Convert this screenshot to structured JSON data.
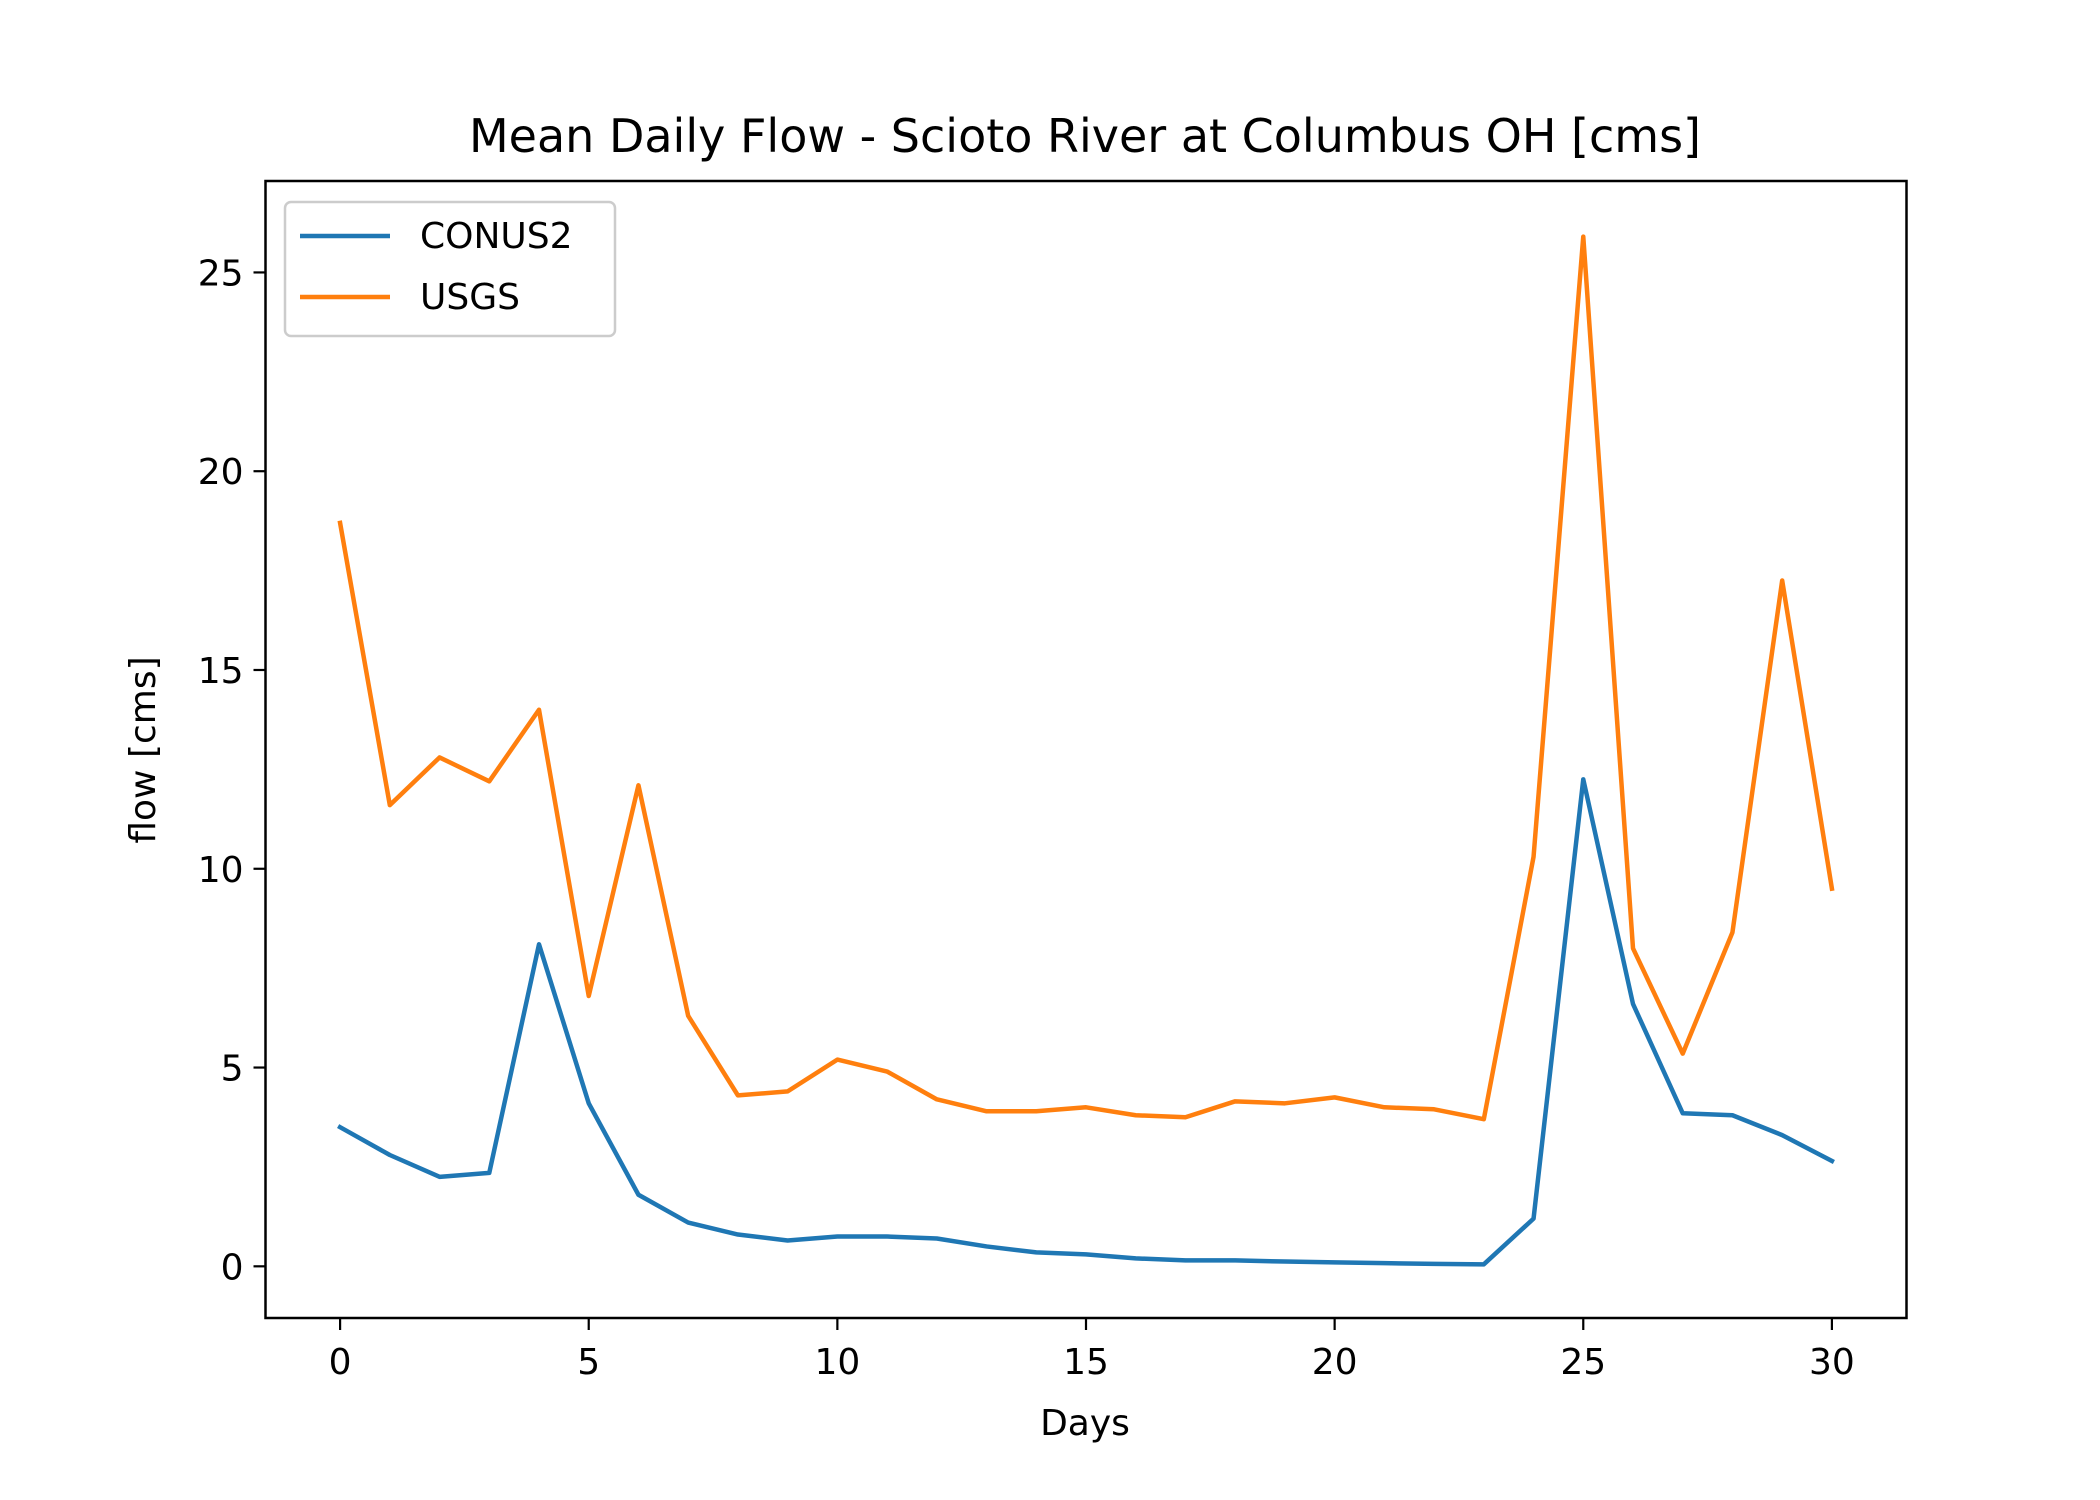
{
  "chart_data": {
    "type": "line",
    "title": "Mean Daily Flow - Scioto River at Columbus OH [cms]",
    "xlabel": "Days",
    "ylabel": "flow [cms]",
    "xlim": [
      -1.5,
      31.5
    ],
    "ylim": [
      -1.3,
      27.3
    ],
    "xticks": [
      0,
      5,
      10,
      15,
      20,
      25,
      30
    ],
    "yticks": [
      0,
      5,
      10,
      15,
      20,
      25
    ],
    "xtick_labels": [
      "0",
      "5",
      "10",
      "15",
      "20",
      "25",
      "30"
    ],
    "ytick_labels": [
      "0",
      "5",
      "10",
      "15",
      "20",
      "25"
    ],
    "grid": false,
    "legend_position": "top-left",
    "x": [
      0,
      1,
      2,
      3,
      4,
      5,
      6,
      7,
      8,
      9,
      10,
      11,
      12,
      13,
      14,
      15,
      16,
      17,
      18,
      19,
      20,
      21,
      22,
      23,
      24,
      25,
      26,
      27,
      28,
      29,
      30
    ],
    "series": [
      {
        "name": "CONUS2",
        "color": "#1f77b4",
        "values": [
          3.5,
          2.8,
          2.25,
          2.35,
          8.1,
          4.1,
          1.8,
          1.1,
          0.8,
          0.65,
          0.75,
          0.75,
          0.7,
          0.5,
          0.35,
          0.3,
          0.2,
          0.15,
          0.15,
          0.12,
          0.1,
          0.08,
          0.06,
          0.05,
          1.2,
          12.25,
          6.6,
          3.85,
          3.8,
          3.3,
          2.65
        ]
      },
      {
        "name": "USGS",
        "color": "#ff7f0e",
        "values": [
          18.7,
          11.6,
          12.8,
          12.2,
          14.0,
          6.8,
          12.1,
          6.3,
          4.3,
          4.4,
          5.2,
          4.9,
          4.2,
          3.9,
          3.9,
          4.0,
          3.8,
          3.75,
          4.15,
          4.1,
          4.25,
          4.0,
          3.95,
          3.7,
          10.3,
          25.9,
          8.0,
          5.35,
          8.4,
          17.25,
          9.5
        ]
      }
    ]
  }
}
